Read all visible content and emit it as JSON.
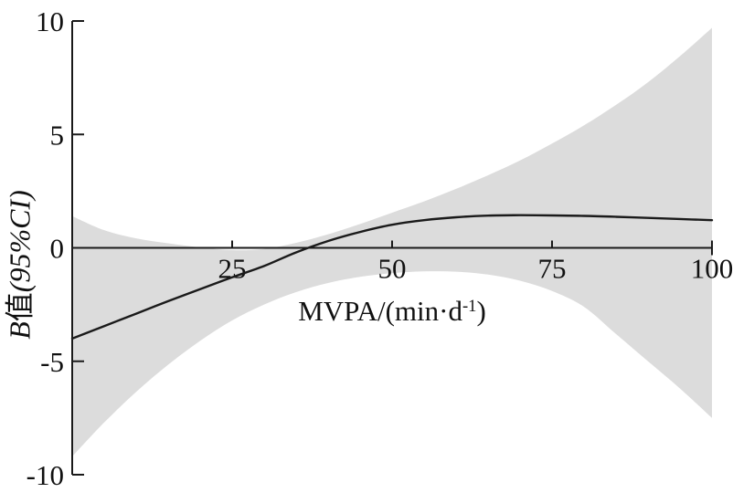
{
  "figure": {
    "background": "#ffffff",
    "band_color": "#dcdcdc",
    "line_color": "#1a1a1a",
    "axis_color": "#1a1a1a",
    "text_color": "#111111"
  },
  "labels": {
    "ylabel_b": "B",
    "ylabel_cjk": "值",
    "ylabel_rest": "(95%CI)",
    "xlabel_main": "MVPA/(min·d",
    "xlabel_sup": "-1",
    "xlabel_close": ")"
  },
  "chart_data": {
    "type": "line",
    "title": "",
    "xlabel": "MVPA/(min·d⁻¹)",
    "ylabel": "B值(95%CI)",
    "xlim": [
      0,
      100
    ],
    "ylim": [
      -10,
      10
    ],
    "xticks": [
      25,
      50,
      75,
      100
    ],
    "yticks": [
      10,
      5,
      0,
      -5,
      -10
    ],
    "grid": false,
    "legend": "none",
    "zero_reference_line": true,
    "x": [
      0,
      5,
      10,
      15,
      20,
      25,
      30,
      35,
      40,
      45,
      50,
      55,
      60,
      65,
      70,
      75,
      80,
      85,
      90,
      95,
      100
    ],
    "series": [
      {
        "name": "B fitted curve",
        "role": "fit",
        "values": [
          -4.0,
          -3.45,
          -2.9,
          -2.35,
          -1.82,
          -1.3,
          -0.8,
          -0.2,
          0.3,
          0.7,
          1.02,
          1.22,
          1.35,
          1.42,
          1.44,
          1.43,
          1.41,
          1.37,
          1.32,
          1.27,
          1.22
        ]
      },
      {
        "name": "95%CI upper bound",
        "role": "ci_upper",
        "values": [
          1.4,
          0.78,
          0.42,
          0.2,
          0.02,
          -0.1,
          -0.05,
          0.22,
          0.6,
          1.05,
          1.55,
          2.05,
          2.6,
          3.2,
          3.85,
          4.6,
          5.4,
          6.3,
          7.3,
          8.45,
          9.7
        ]
      },
      {
        "name": "95%CI lower bound",
        "role": "ci_lower",
        "values": [
          -9.2,
          -7.7,
          -6.35,
          -5.15,
          -4.1,
          -3.2,
          -2.5,
          -1.95,
          -1.55,
          -1.28,
          -1.12,
          -1.04,
          -1.05,
          -1.18,
          -1.45,
          -1.9,
          -2.6,
          -3.8,
          -5.0,
          -6.2,
          -7.5
        ]
      }
    ]
  }
}
